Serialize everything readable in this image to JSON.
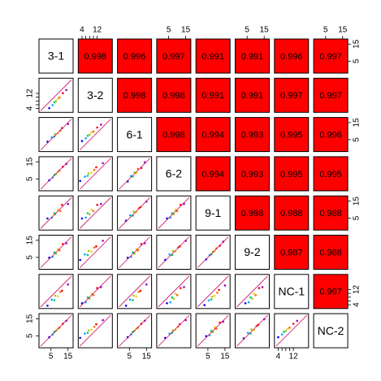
{
  "chart_data": {
    "type": "pairs",
    "cell_color": "#ff0000",
    "point_colors": [
      "#0000ff",
      "#00aaff",
      "#00cc66",
      "#99cc00",
      "#ffcc00",
      "#ff6600",
      "#ff0000",
      "#9900cc"
    ],
    "variables": [
      {
        "label": "3-1",
        "lim": [
          -2,
          18
        ],
        "ticks": [
          5,
          15
        ]
      },
      {
        "label": "3-2",
        "lim": [
          2,
          20
        ],
        "ticks": [
          4,
          12
        ],
        "minor_ticks": [
          6,
          8,
          10
        ]
      },
      {
        "label": "6-1",
        "lim": [
          -2,
          18
        ],
        "ticks": [
          5,
          15
        ]
      },
      {
        "label": "6-2",
        "lim": [
          -2,
          18
        ],
        "ticks": [
          5,
          15
        ]
      },
      {
        "label": "9-1",
        "lim": [
          -2,
          18
        ],
        "ticks": [
          5,
          15
        ]
      },
      {
        "label": "9-2",
        "lim": [
          -2,
          18
        ],
        "ticks": [
          5,
          15
        ]
      },
      {
        "label": "NC-1",
        "lim": [
          2,
          20
        ],
        "ticks": [
          4,
          12
        ],
        "minor_ticks": [
          6,
          8,
          10
        ]
      },
      {
        "label": "NC-2",
        "lim": [
          -2,
          18
        ],
        "ticks": [
          5,
          15
        ]
      }
    ],
    "correlations": [
      [
        0.998,
        0.996,
        0.997,
        0.991,
        0.991,
        0.996,
        0.997
      ],
      [
        0.998,
        0.998,
        0.991,
        0.991,
        0.997,
        0.997
      ],
      [
        0.998,
        0.994,
        0.993,
        0.995,
        0.996
      ],
      [
        0.994,
        0.993,
        0.995,
        0.995
      ],
      [
        0.998,
        0.988,
        0.988
      ],
      [
        0.987,
        0.988
      ],
      [
        0.997
      ]
    ],
    "scatter": [
      [
        {
          "x": [
            4,
            6,
            7,
            8,
            9,
            10,
            12,
            14
          ],
          "y": [
            4.2,
            5.8,
            7.3,
            7.9,
            9.2,
            9.8,
            12.1,
            13.8
          ]
        }
      ],
      [
        {
          "x": [
            3,
            5.5,
            7,
            7.5,
            9,
            10.5,
            11.5,
            15
          ],
          "y": [
            3.8,
            6.3,
            6.8,
            8.2,
            8.7,
            10.3,
            11.8,
            14.2
          ]
        },
        {
          "x": [
            4,
            6,
            7,
            8,
            9,
            10,
            12,
            14
          ],
          "y": [
            4.2,
            5.8,
            7.3,
            7.9,
            9.2,
            9.8,
            12.1,
            13.8
          ]
        }
      ],
      [
        {
          "x": [
            4,
            6,
            7,
            8,
            9,
            10,
            12,
            14
          ],
          "y": [
            4.2,
            5.8,
            7.3,
            7.9,
            9.2,
            9.8,
            12.1,
            13.8
          ]
        },
        {
          "x": [
            3,
            5.5,
            7,
            7.5,
            9,
            10.5,
            11.5,
            15
          ],
          "y": [
            3.8,
            6.3,
            6.8,
            8.2,
            8.7,
            10.3,
            11.8,
            14.2
          ]
        },
        {
          "x": [
            4,
            6,
            7,
            8,
            9,
            10,
            12,
            14
          ],
          "y": [
            3.5,
            6.7,
            6.4,
            8.8,
            8.4,
            10.8,
            11.4,
            14.7
          ]
        }
      ],
      [
        {
          "x": [
            3,
            5.5,
            7,
            7.5,
            9,
            10.5,
            11.5,
            15
          ],
          "y": [
            4.8,
            5.3,
            7.9,
            7.2,
            9.9,
            9.1,
            12.8,
            13.3
          ]
        },
        {
          "x": [
            4,
            6,
            7,
            8,
            9,
            10,
            12,
            14
          ],
          "y": [
            4.8,
            5.3,
            7.9,
            7.2,
            9.9,
            9.1,
            12.8,
            13.3
          ]
        },
        {
          "x": [
            3,
            5.5,
            7,
            7.5,
            9,
            10.5,
            11.5,
            15
          ],
          "y": [
            3.5,
            6.7,
            6.4,
            8.8,
            8.4,
            10.8,
            11.4,
            14.7
          ]
        },
        {
          "x": [
            4,
            6,
            7,
            8,
            9,
            10,
            12,
            14
          ],
          "y": [
            4.8,
            5.3,
            7.9,
            7.2,
            9.9,
            9.1,
            12.8,
            13.3
          ]
        }
      ],
      [
        {
          "x": [
            4,
            6,
            7,
            8,
            9,
            10,
            12,
            14
          ],
          "y": [
            4.8,
            5.3,
            7.9,
            7.2,
            9.9,
            9.1,
            12.8,
            13.3
          ]
        },
        {
          "x": [
            3,
            5.5,
            7,
            7.5,
            9,
            10.5,
            11.5,
            15
          ],
          "y": [
            3.5,
            6.7,
            6.4,
            8.8,
            8.4,
            10.8,
            11.4,
            14.7
          ]
        },
        {
          "x": [
            4,
            6,
            7,
            8,
            9,
            10,
            12,
            14
          ],
          "y": [
            4.8,
            5.3,
            7.9,
            7.2,
            9.9,
            9.1,
            12.8,
            13.3
          ]
        },
        {
          "x": [
            3,
            5.5,
            7,
            7.5,
            9,
            10.5,
            11.5,
            15
          ],
          "y": [
            3.5,
            6.7,
            6.4,
            8.8,
            8.4,
            10.8,
            11.4,
            14.7
          ]
        },
        {
          "x": [
            4,
            6,
            7,
            8,
            9,
            10,
            12,
            14
          ],
          "y": [
            3.8,
            6.3,
            6.8,
            8.2,
            8.7,
            10.3,
            11.8,
            14.2
          ]
        }
      ],
      [
        {
          "x": [
            3,
            5.5,
            7,
            7.5,
            9,
            10.5,
            11.5,
            15
          ],
          "y": [
            3.5,
            6.7,
            6.4,
            8.8,
            8.4,
            10.8,
            11.4,
            14.7
          ]
        },
        {
          "x": [
            4,
            6,
            7,
            8,
            9,
            10,
            12,
            14
          ],
          "y": [
            4.8,
            5.3,
            7.9,
            7.2,
            9.9,
            9.1,
            12.8,
            13.3
          ]
        },
        {
          "x": [
            3,
            5.5,
            7,
            7.5,
            9,
            10.5,
            11.5,
            15
          ],
          "y": [
            3.5,
            6.7,
            6.4,
            8.8,
            8.4,
            10.8,
            11.4,
            14.7
          ]
        },
        {
          "x": [
            4,
            6,
            7,
            8,
            9,
            10,
            12,
            14
          ],
          "y": [
            4.8,
            5.3,
            7.9,
            7.2,
            9.9,
            9.1,
            12.8,
            13.3
          ]
        },
        {
          "x": [
            3,
            5.5,
            7,
            7.5,
            9,
            10.5,
            11.5,
            15
          ],
          "y": [
            3.8,
            6.3,
            6.8,
            8.2,
            8.7,
            10.3,
            11.8,
            14.2
          ]
        },
        {
          "x": [
            4,
            6,
            7,
            8,
            9,
            10,
            12,
            14
          ],
          "y": [
            4.8,
            5.3,
            7.9,
            7.2,
            9.9,
            9.1,
            12.8,
            13.3
          ]
        }
      ],
      [
        {
          "x": [
            4,
            6,
            7,
            8,
            9,
            10,
            12,
            14
          ],
          "y": [
            4.2,
            5.8,
            7.3,
            7.9,
            9.2,
            9.8,
            12.1,
            13.8
          ]
        },
        {
          "x": [
            3,
            5.5,
            7,
            7.5,
            9,
            10.5,
            11.5,
            15
          ],
          "y": [
            3.8,
            6.3,
            6.8,
            8.2,
            8.7,
            10.3,
            11.8,
            14.2
          ]
        },
        {
          "x": [
            4,
            6,
            7,
            8,
            9,
            10,
            12,
            14
          ],
          "y": [
            4.2,
            5.8,
            7.3,
            7.9,
            9.2,
            9.8,
            12.1,
            13.8
          ]
        },
        {
          "x": [
            3,
            5.5,
            7,
            7.5,
            9,
            10.5,
            11.5,
            15
          ],
          "y": [
            3.8,
            6.3,
            6.8,
            8.2,
            8.7,
            10.3,
            11.8,
            14.2
          ]
        },
        {
          "x": [
            4,
            6,
            7,
            8,
            9,
            10,
            12,
            14
          ],
          "y": [
            4.8,
            5.3,
            7.9,
            7.2,
            9.9,
            9.1,
            12.8,
            13.3
          ]
        },
        {
          "x": [
            3,
            5.5,
            7,
            7.5,
            9,
            10.5,
            11.5,
            15
          ],
          "y": [
            3.5,
            6.7,
            6.4,
            8.8,
            8.4,
            10.8,
            11.4,
            14.7
          ]
        },
        {
          "x": [
            4,
            6,
            7,
            8,
            9,
            10,
            12,
            14
          ],
          "y": [
            4.2,
            5.8,
            7.3,
            7.9,
            9.2,
            9.8,
            12.1,
            13.8
          ]
        }
      ]
    ]
  }
}
